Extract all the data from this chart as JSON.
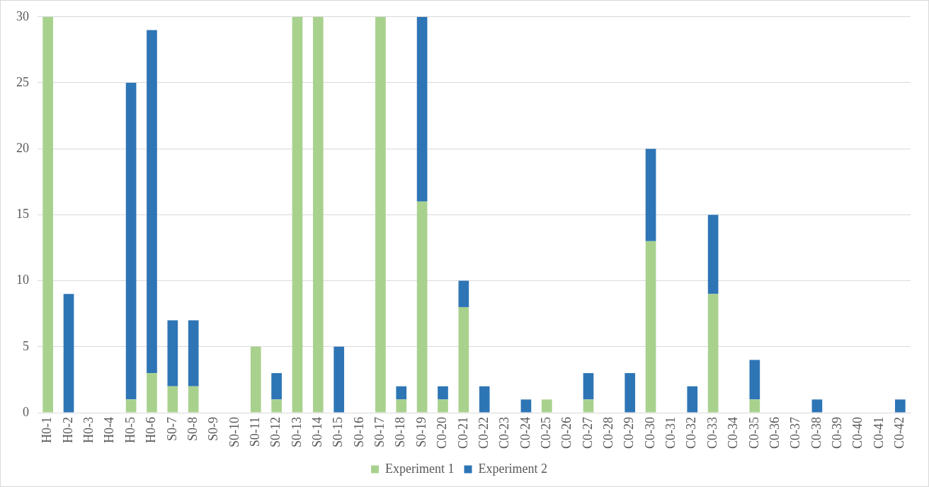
{
  "chart_data": {
    "type": "bar",
    "stacked": true,
    "categories": [
      "H0-1",
      "H0-2",
      "H0-3",
      "H0-4",
      "H0-5",
      "H0-6",
      "S0-7",
      "S0-8",
      "S0-9",
      "S0-10",
      "S0-11",
      "S0-12",
      "S0-13",
      "S0-14",
      "S0-15",
      "S0-16",
      "S0-17",
      "S0-18",
      "S0-19",
      "C0-20",
      "C0-21",
      "C0-22",
      "C0-23",
      "C0-24",
      "C0-25",
      "C0-26",
      "C0-27",
      "C0-28",
      "C0-29",
      "C0-30",
      "C0-31",
      "C0-32",
      "C0-33",
      "C0-34",
      "C0-35",
      "C0-36",
      "C0-37",
      "C0-38",
      "C0-39",
      "C0-40",
      "C0-41",
      "C0-42"
    ],
    "series": [
      {
        "name": "Experiment 1",
        "color": "#a9d18e",
        "values": [
          30,
          0,
          0,
          0,
          1,
          3,
          2,
          2,
          0,
          0,
          5,
          1,
          30,
          30,
          0,
          0,
          30,
          1,
          16,
          1,
          8,
          0,
          0,
          0,
          1,
          0,
          1,
          0,
          0,
          13,
          0,
          0,
          9,
          0,
          1,
          0,
          0,
          0,
          0,
          0,
          0,
          0
        ]
      },
      {
        "name": "Experiment 2",
        "color": "#2e75b6",
        "values": [
          0,
          9,
          0,
          0,
          24,
          26,
          5,
          5,
          0,
          0,
          0,
          2,
          0,
          0,
          5,
          0,
          0,
          1,
          14,
          1,
          2,
          2,
          0,
          1,
          0,
          0,
          2,
          0,
          3,
          7,
          0,
          2,
          6,
          0,
          3,
          0,
          0,
          1,
          0,
          0,
          0,
          1
        ]
      }
    ],
    "ylim": [
      0,
      30
    ],
    "yticks": [
      0,
      5,
      10,
      15,
      20,
      25,
      30
    ],
    "grid": "y",
    "legend": "bottom"
  }
}
